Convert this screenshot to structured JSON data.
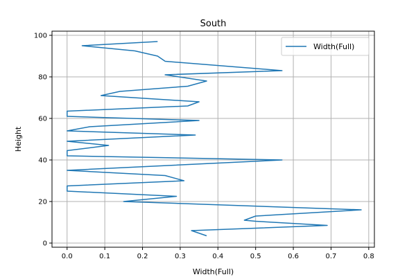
{
  "chart_data": {
    "type": "line",
    "title": "South",
    "xlabel": "Width(Full)",
    "ylabel": "Height",
    "xlim": [
      -0.04,
      0.815
    ],
    "ylim": [
      -2,
      102
    ],
    "xticks": [
      0.0,
      0.1,
      0.2,
      0.3,
      0.4,
      0.5,
      0.6,
      0.7,
      0.8
    ],
    "xtick_labels": [
      "0.0",
      "0.1",
      "0.2",
      "0.3",
      "0.4",
      "0.5",
      "0.6",
      "0.7",
      "0.8"
    ],
    "yticks": [
      0,
      20,
      40,
      60,
      80,
      100
    ],
    "ytick_labels": [
      "0",
      "20",
      "40",
      "60",
      "80",
      "100"
    ],
    "grid": true,
    "legend_position": "top-right",
    "series": [
      {
        "name": "Width(Full)",
        "color": "#1f77b4",
        "x": [
          0.37,
          0.33,
          0.69,
          0.5,
          0.47,
          0.5,
          0.78,
          0.15,
          0.29,
          0.0,
          0.0,
          0.31,
          0.26,
          0.0,
          0.57,
          0.0,
          0.0,
          0.11,
          0.0,
          0.34,
          0.0,
          0.06,
          0.35,
          0.0,
          0.0,
          0.32,
          0.35,
          0.09,
          0.14,
          0.32,
          0.37,
          0.26,
          0.57,
          0.26,
          0.24,
          0.18,
          0.04,
          0.24
        ],
        "y": [
          3.5,
          6,
          8.5,
          10.5,
          11,
          13,
          16,
          20,
          22.5,
          25,
          27.5,
          30,
          32.5,
          35,
          40,
          42,
          44.5,
          47,
          49,
          52,
          54,
          56,
          59,
          61,
          63.5,
          66,
          68,
          71,
          73,
          75.5,
          78,
          81,
          83,
          87.5,
          90,
          92.5,
          95,
          97
        ]
      }
    ]
  }
}
